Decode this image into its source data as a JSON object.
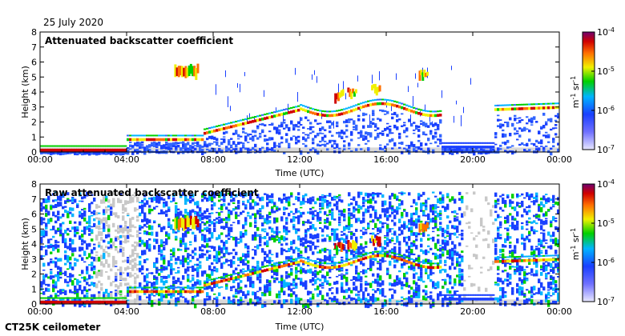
{
  "header": {
    "date": "25 July 2020"
  },
  "footer": {
    "instrument": "CT25K ceilometer"
  },
  "chart_data": [
    {
      "type": "heatmap",
      "title": "Attenuated backscatter coefficient",
      "xlabel": "Time (UTC)",
      "ylabel": "Height (km)",
      "xticks": [
        "00:00",
        "04:00",
        "08:00",
        "12:00",
        "16:00",
        "20:00",
        "00:00"
      ],
      "xlim": [
        0,
        24
      ],
      "ylim": [
        0,
        8
      ],
      "yticks": [
        0,
        1,
        2,
        3,
        4,
        5,
        6,
        7,
        8
      ],
      "colorbar": {
        "label": "m-1 sr-1",
        "ticks": [
          "10-4",
          "10-5",
          "10-6",
          "10-7"
        ],
        "scale": "log",
        "range": [
          "1e-7",
          "1e-4"
        ]
      },
      "features": [
        {
          "name": "surface layer",
          "start_h": 0.0,
          "end_h": 4.0,
          "height_km": 0.1
        },
        {
          "name": "morning boundary layer",
          "start_h": 4.5,
          "end_h": 7.5,
          "height_km": 0.8
        },
        {
          "name": "boundary layer top",
          "start_h": 7.5,
          "end_h": 12.0,
          "height_km_start": 1.2,
          "height_km_end": 2.8
        },
        {
          "name": "cloud layer",
          "start_h": 12.0,
          "end_h": 18.5,
          "height_km": 3.8
        },
        {
          "name": "elevated cloud",
          "start_h": 6.2,
          "end_h": 7.3,
          "height_km": 5.3
        },
        {
          "name": "evening layer",
          "start_h": 21.0,
          "end_h": 24.0,
          "height_km": 2.8
        }
      ]
    },
    {
      "type": "heatmap",
      "title": "Raw attenuated backscatter coefficient",
      "xlabel": "Time (UTC)",
      "ylabel": "Height (km)",
      "xticks": [
        "00:00",
        "04:00",
        "08:00",
        "12:00",
        "16:00",
        "20:00",
        "00:00"
      ],
      "xlim": [
        0,
        24
      ],
      "ylim": [
        0,
        8
      ],
      "yticks": [
        0,
        1,
        2,
        3,
        4,
        5,
        6,
        7,
        8
      ],
      "colorbar": {
        "label": "m-1 sr-1",
        "ticks": [
          "10-4",
          "10-5",
          "10-6",
          "10-7"
        ],
        "scale": "log",
        "range": [
          "1e-7",
          "1e-4"
        ]
      },
      "features": [
        {
          "name": "noise region",
          "start_h": 0.0,
          "end_h": 19.5,
          "height_km": 7.5
        },
        {
          "name": "boundary layer top",
          "start_h": 7.5,
          "end_h": 12.0,
          "height_km_start": 1.2,
          "height_km_end": 2.8
        },
        {
          "name": "cloud layer",
          "start_h": 12.0,
          "end_h": 18.5,
          "height_km": 3.8
        },
        {
          "name": "evening layer",
          "start_h": 21.0,
          "end_h": 24.0,
          "height_km": 2.8
        }
      ]
    }
  ]
}
